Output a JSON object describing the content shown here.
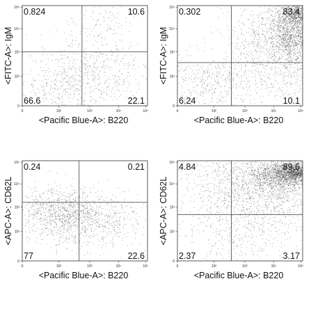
{
  "chart_data": [
    {
      "type": "scatter",
      "xlabel": "<Pacific Blue-A>: B220",
      "ylabel": "<FITC-A>: IgM",
      "x_ticks": [
        "0",
        "10²",
        "10³",
        "10⁴",
        "10⁵"
      ],
      "y_ticks": [
        "0",
        "10²",
        "10³",
        "10⁴",
        "10⁵"
      ],
      "gate": {
        "x": 620,
        "y": 700
      },
      "quadrants": {
        "top_left": "0.824",
        "top_right": "10.6",
        "bottom_left": "66.6",
        "bottom_right": "22.1"
      },
      "populations": [
        {
          "name": "",
          "cx": 480,
          "cy": 300,
          "sx": 230,
          "sy": 230,
          "n": 520
        },
        {
          "name": "",
          "cx": 900,
          "cy": 450,
          "sx": 230,
          "sy": 220,
          "n": 240
        },
        {
          "name": "",
          "cx": 820,
          "cy": 1000,
          "sx": 200,
          "sy": 240,
          "n": 160
        }
      ]
    },
    {
      "type": "scatter",
      "xlabel": "<Pacific Blue-A>: B220",
      "ylabel": "<FITC-A>: IgM",
      "x_ticks": [
        "0",
        "10²",
        "10³",
        "10⁴",
        "10⁵"
      ],
      "y_ticks": [
        "0",
        "10²",
        "10³",
        "10⁴",
        "10⁵"
      ],
      "gate": {
        "x": 560,
        "y": 560
      },
      "quadrants": {
        "top_left": "0.302",
        "top_right": "83.4",
        "bottom_left": "6.24",
        "bottom_right": "10.1"
      },
      "populations": [
        {
          "name": "",
          "cx": 1220,
          "cy": 1050,
          "sx": 140,
          "sy": 280,
          "n": 1800
        },
        {
          "name": "",
          "cx": 1030,
          "cy": 850,
          "sx": 260,
          "sy": 260,
          "n": 900
        },
        {
          "name": "",
          "cx": 1250,
          "cy": 1180,
          "sx": 70,
          "sy": 70,
          "n": 350
        },
        {
          "name": "",
          "cx": 300,
          "cy": 280,
          "sx": 200,
          "sy": 180,
          "n": 350
        },
        {
          "name": "",
          "cx": 900,
          "cy": 320,
          "sx": 320,
          "sy": 160,
          "n": 280
        }
      ]
    },
    {
      "type": "scatter",
      "xlabel": "<Pacific Blue-A>: B220",
      "ylabel": "<APC-A>: CD62L",
      "x_ticks": [
        "0",
        "10²",
        "10³",
        "10⁴",
        "10⁵"
      ],
      "y_ticks": [
        "0",
        "10²",
        "10³",
        "10⁴",
        "10⁵"
      ],
      "gate": {
        "x": 590,
        "y": 760
      },
      "quadrants": {
        "top_left": "0.24",
        "top_right": "0.21",
        "bottom_left": "77",
        "bottom_right": "22.6"
      },
      "populations": [
        {
          "name": "",
          "cx": 400,
          "cy": 650,
          "sx": 220,
          "sy": 150,
          "n": 900
        },
        {
          "name": "",
          "cx": 850,
          "cy": 560,
          "sx": 230,
          "sy": 160,
          "n": 300
        },
        {
          "name": "",
          "cx": 550,
          "cy": 380,
          "sx": 300,
          "sy": 160,
          "n": 250
        }
      ]
    },
    {
      "type": "scatter",
      "xlabel": "<Pacific Blue-A>: B220",
      "ylabel": "<APC-A>: CD62L",
      "x_ticks": [
        "0",
        "10²",
        "10³",
        "10⁴",
        "10⁵"
      ],
      "y_ticks": [
        "0",
        "10²",
        "10³",
        "10⁴",
        "10⁵"
      ],
      "gate": {
        "x": 560,
        "y": 600
      },
      "quadrants": {
        "top_left": "4.84",
        "top_right": "89.6",
        "bottom_left": "2.37",
        "bottom_right": "3.17"
      },
      "populations": [
        {
          "name": "",
          "cx": 1150,
          "cy": 1130,
          "sx": 200,
          "sy": 100,
          "n": 1700
        },
        {
          "name": "",
          "cx": 950,
          "cy": 950,
          "sx": 330,
          "sy": 260,
          "n": 1500
        },
        {
          "name": "",
          "cx": 1220,
          "cy": 1160,
          "sx": 70,
          "sy": 45,
          "n": 400
        },
        {
          "name": "",
          "cx": 400,
          "cy": 900,
          "sx": 200,
          "sy": 300,
          "n": 260
        },
        {
          "name": "",
          "cx": 700,
          "cy": 300,
          "sx": 350,
          "sy": 180,
          "n": 260
        }
      ]
    }
  ]
}
